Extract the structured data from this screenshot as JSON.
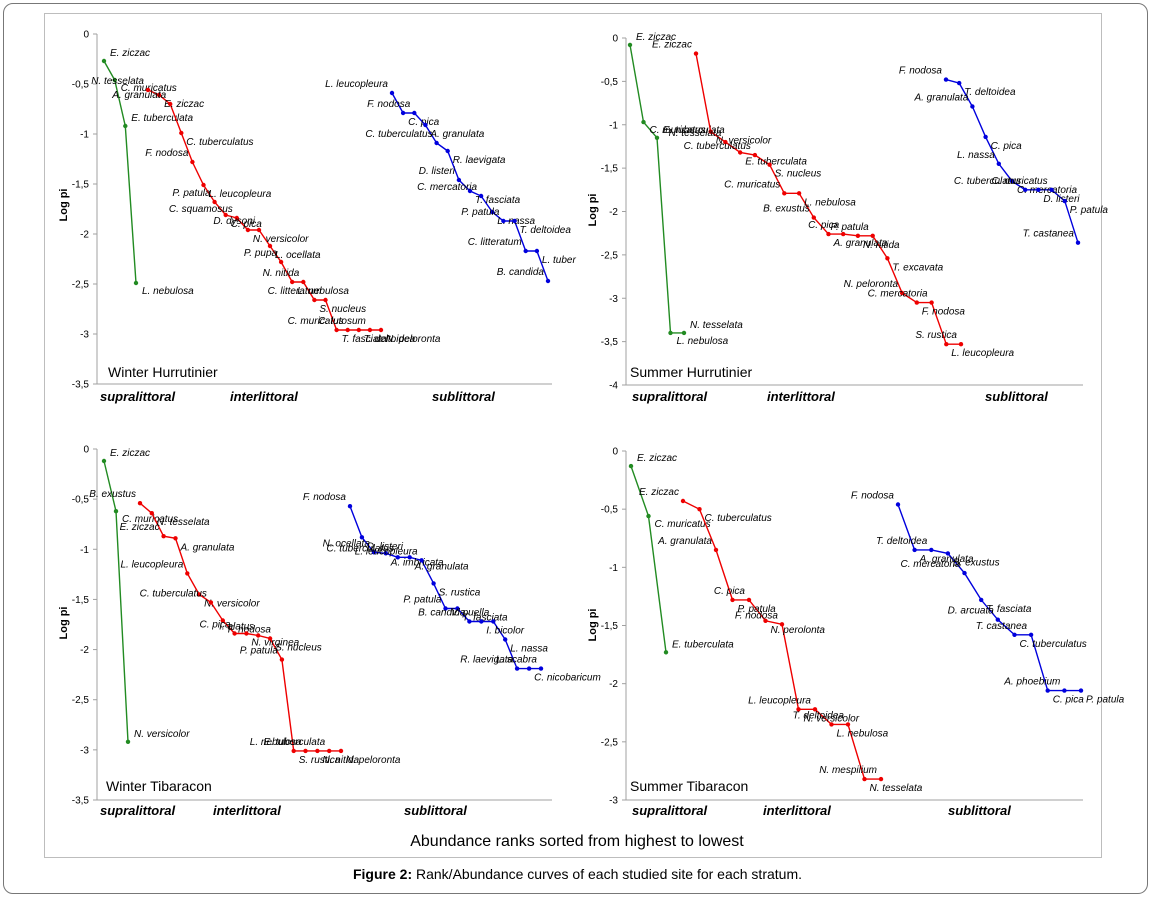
{
  "x_axis_label": "Abundance ranks sorted from highest to lowest",
  "y_axis_label": "Log pi",
  "zones": [
    "supralittoral",
    "interlittoral",
    "sublittoral"
  ],
  "caption": {
    "label": "Figure 2:",
    "text": " Rank/Abundance curves of each studied site for each stratum."
  },
  "colors": {
    "supralittoral": "#228b22",
    "interlittoral": "#ee0000",
    "sublittoral": "#0000dd"
  },
  "chart_data": [
    {
      "type": "line",
      "title": "Winter Hurrutinier",
      "ylabel": "Log pi",
      "ylim": [
        -3.5,
        0
      ],
      "yticks": [
        "0",
        "-0,5",
        "-1",
        "-1,5",
        "-2",
        "-2,5",
        "-3",
        "-3,5"
      ],
      "series": [
        {
          "name": "supralittoral",
          "points": [
            {
              "rank": 1,
              "y": -0.27,
              "label": "E. ziczac"
            },
            {
              "rank": 2,
              "y": -0.46,
              "label": "C. muricatus"
            },
            {
              "rank": 3,
              "y": -0.92,
              "label": "E. tuberculata"
            },
            {
              "rank": 4,
              "y": -2.49,
              "label": "L. nebulosa"
            }
          ]
        },
        {
          "name": "interlittoral",
          "points": [
            {
              "rank": 1,
              "y": -0.56,
              "label": "N. tesselata"
            },
            {
              "rank": 2,
              "y": -0.61,
              "label": "E. ziczac"
            },
            {
              "rank": 3,
              "y": -0.7,
              "label": "A. granulata"
            },
            {
              "rank": 4,
              "y": -0.99,
              "label": "C. tuberculatus"
            },
            {
              "rank": 5,
              "y": -1.28,
              "label": "F. nodosa"
            },
            {
              "rank": 6,
              "y": -1.51,
              "label": "L. leucopleura"
            },
            {
              "rank": 7,
              "y": -1.68,
              "label": "P. patula"
            },
            {
              "rank": 8,
              "y": -1.81,
              "label": "C. pica"
            },
            {
              "rank": 9,
              "y": -1.84,
              "label": "C. squamosus"
            },
            {
              "rank": 10,
              "y": -1.96,
              "label": "N. versicolor"
            },
            {
              "rank": 11,
              "y": -1.96,
              "label": "D. dysoni"
            },
            {
              "rank": 12,
              "y": -2.12,
              "label": "L. ocellata"
            },
            {
              "rank": 13,
              "y": -2.28,
              "label": "P. pupa"
            },
            {
              "rank": 14,
              "y": -2.48,
              "label": "L. nebulosa"
            },
            {
              "rank": 15,
              "y": -2.48,
              "label": "N. nitida"
            },
            {
              "rank": 16,
              "y": -2.66,
              "label": "S. nucleus"
            },
            {
              "rank": 17,
              "y": -2.66,
              "label": "C. litteratum"
            },
            {
              "rank": 18,
              "y": -2.96,
              "label": "T. fasciata"
            },
            {
              "rank": 19,
              "y": -2.96,
              "label": "C. muricatus"
            },
            {
              "rank": 20,
              "y": -2.96,
              "label": "T. deltoidea"
            },
            {
              "rank": 21,
              "y": -2.96,
              "label": "C. lutosum"
            },
            {
              "rank": 22,
              "y": -2.96,
              "label": "N. peloronta"
            }
          ]
        },
        {
          "name": "sublittoral",
          "points": [
            {
              "rank": 1,
              "y": -0.59,
              "label": "L. leucopleura"
            },
            {
              "rank": 2,
              "y": -0.79,
              "label": "C. pica"
            },
            {
              "rank": 3,
              "y": -0.79,
              "label": "F. nodosa"
            },
            {
              "rank": 4,
              "y": -0.91,
              "label": "A. granulata"
            },
            {
              "rank": 5,
              "y": -1.09,
              "label": "C. tuberculatus"
            },
            {
              "rank": 6,
              "y": -1.17,
              "label": "R. laevigata"
            },
            {
              "rank": 7,
              "y": -1.46,
              "label": "D. listeri"
            },
            {
              "rank": 8,
              "y": -1.57,
              "label": "T. fasciata"
            },
            {
              "rank": 9,
              "y": -1.62,
              "label": "C. mercatoria"
            },
            {
              "rank": 10,
              "y": -1.78,
              "label": "L. nassa"
            },
            {
              "rank": 11,
              "y": -1.87,
              "label": "P. patula"
            },
            {
              "rank": 12,
              "y": -1.87,
              "label": "T. deltoidea"
            },
            {
              "rank": 13,
              "y": -2.17,
              "label": "C. litteratum"
            },
            {
              "rank": 14,
              "y": -2.17,
              "label": "L. tuber"
            },
            {
              "rank": 15,
              "y": -2.47,
              "label": "B. candida"
            }
          ]
        }
      ]
    },
    {
      "type": "line",
      "title": "Summer Hurrutinier",
      "ylabel": "Log pi",
      "ylim": [
        -4,
        0
      ],
      "yticks": [
        "0",
        "-0,5",
        "-1",
        "-1,5",
        "-2",
        "-2,5",
        "-3",
        "-3,5",
        "-4"
      ],
      "series": [
        {
          "name": "supralittoral",
          "points": [
            {
              "rank": 1,
              "y": -0.08,
              "label": "E. ziczac"
            },
            {
              "rank": 2,
              "y": -0.97,
              "label": "C. muricatus"
            },
            {
              "rank": 3,
              "y": -1.15,
              "label": "E. tuberculata"
            },
            {
              "rank": 4,
              "y": -3.4,
              "label": "L. nebulosa"
            },
            {
              "rank": 5,
              "y": -3.4,
              "label": "N. tesselata"
            }
          ]
        },
        {
          "name": "interlittoral",
          "points": [
            {
              "rank": 1,
              "y": -0.18,
              "label": "E. ziczac"
            },
            {
              "rank": 2,
              "y": -1.08,
              "label": "N. versicolor"
            },
            {
              "rank": 3,
              "y": -1.2,
              "label": "N. tesselata"
            },
            {
              "rank": 4,
              "y": -1.32,
              "label": "E. tuberculata"
            },
            {
              "rank": 5,
              "y": -1.35,
              "label": "C. tuberculatus"
            },
            {
              "rank": 6,
              "y": -1.46,
              "label": "S. nucleus"
            },
            {
              "rank": 7,
              "y": -1.79,
              "label": "C. muricatus"
            },
            {
              "rank": 8,
              "y": -1.79,
              "label": "L. nebulosa"
            },
            {
              "rank": 9,
              "y": -2.07,
              "label": "B. exustus"
            },
            {
              "rank": 10,
              "y": -2.26,
              "label": "A. granulata"
            },
            {
              "rank": 11,
              "y": -2.26,
              "label": "C. pica"
            },
            {
              "rank": 12,
              "y": -2.28,
              "label": "N. nitida"
            },
            {
              "rank": 13,
              "y": -2.28,
              "label": "P. patula"
            },
            {
              "rank": 14,
              "y": -2.54,
              "label": "T. excavata"
            },
            {
              "rank": 15,
              "y": -2.94,
              "label": "N. peloronta"
            },
            {
              "rank": 16,
              "y": -3.05,
              "label": "F. nodosa"
            },
            {
              "rank": 17,
              "y": -3.05,
              "label": "C. mercatoria"
            },
            {
              "rank": 18,
              "y": -3.53,
              "label": "L. leucopleura"
            },
            {
              "rank": 19,
              "y": -3.53,
              "label": "S. rustica"
            }
          ]
        },
        {
          "name": "sublittoral",
          "points": [
            {
              "rank": 1,
              "y": -0.48,
              "label": "F. nodosa"
            },
            {
              "rank": 2,
              "y": -0.52,
              "label": "T. deltoidea"
            },
            {
              "rank": 3,
              "y": -0.79,
              "label": "A. granulata"
            },
            {
              "rank": 4,
              "y": -1.14,
              "label": "C. pica"
            },
            {
              "rank": 5,
              "y": -1.45,
              "label": "L. nassa"
            },
            {
              "rank": 6,
              "y": -1.65,
              "label": "C. mercatoria"
            },
            {
              "rank": 7,
              "y": -1.75,
              "label": "C. tuberculatus"
            },
            {
              "rank": 8,
              "y": -1.75,
              "label": "D. listeri"
            },
            {
              "rank": 9,
              "y": -1.75,
              "label": "C. muricatus"
            },
            {
              "rank": 10,
              "y": -1.88,
              "label": "P. patula"
            },
            {
              "rank": 11,
              "y": -2.36,
              "label": "T. castanea"
            }
          ]
        }
      ]
    },
    {
      "type": "line",
      "title": "Winter Tibaracon",
      "ylabel": "Log pi",
      "ylim": [
        -3.5,
        0
      ],
      "yticks": [
        "0",
        "-0,5",
        "-1",
        "-1,5",
        "-2",
        "-2,5",
        "-3",
        "-3,5"
      ],
      "series": [
        {
          "name": "supralittoral",
          "points": [
            {
              "rank": 1,
              "y": -0.12,
              "label": "E. ziczac"
            },
            {
              "rank": 2,
              "y": -0.62,
              "label": "C. muricatus"
            },
            {
              "rank": 3,
              "y": -2.92,
              "label": "N. versicolor"
            }
          ]
        },
        {
          "name": "interlittoral",
          "points": [
            {
              "rank": 1,
              "y": -0.54,
              "label": "B. exustus"
            },
            {
              "rank": 2,
              "y": -0.64,
              "label": "N. tesselata"
            },
            {
              "rank": 3,
              "y": -0.87,
              "label": "E. ziczac"
            },
            {
              "rank": 4,
              "y": -0.89,
              "label": "A. granulata"
            },
            {
              "rank": 5,
              "y": -1.24,
              "label": "L. leucopleura"
            },
            {
              "rank": 6,
              "y": -1.45,
              "label": "N. versicolor"
            },
            {
              "rank": 7,
              "y": -1.53,
              "label": "C. tuberculatus"
            },
            {
              "rank": 8,
              "y": -1.71,
              "label": "F. nodosa"
            },
            {
              "rank": 9,
              "y": -1.84,
              "label": "C. pica"
            },
            {
              "rank": 10,
              "y": -1.84,
              "label": "N. virginea"
            },
            {
              "rank": 11,
              "y": -1.86,
              "label": "I. alatus"
            },
            {
              "rank": 12,
              "y": -1.89,
              "label": "S. nucleus"
            },
            {
              "rank": 13,
              "y": -2.1,
              "label": "P. patula"
            },
            {
              "rank": 14,
              "y": -3.01,
              "label": "S. rustica"
            },
            {
              "rank": 15,
              "y": -3.01,
              "label": "L. nebulosa"
            },
            {
              "rank": 16,
              "y": -3.01,
              "label": "N. nitida"
            },
            {
              "rank": 17,
              "y": -3.01,
              "label": "E. tuberculata"
            },
            {
              "rank": 18,
              "y": -3.01,
              "label": "N. peloronta"
            }
          ]
        },
        {
          "name": "sublittoral",
          "points": [
            {
              "rank": 1,
              "y": -0.57,
              "label": "F. nodosa"
            },
            {
              "rank": 2,
              "y": -0.88,
              "label": "D. listeri"
            },
            {
              "rank": 3,
              "y": -1.03,
              "label": "N. ocellata"
            },
            {
              "rank": 4,
              "y": -1.04,
              "label": "A. imbricata"
            },
            {
              "rank": 5,
              "y": -1.08,
              "label": "C. tuberculatus"
            },
            {
              "rank": 6,
              "y": -1.08,
              "label": "A. granulata"
            },
            {
              "rank": 7,
              "y": -1.11,
              "label": "L. leucopleura"
            },
            {
              "rank": 8,
              "y": -1.34,
              "label": "S. rustica"
            },
            {
              "rank": 9,
              "y": -1.59,
              "label": "P. patula"
            },
            {
              "rank": 10,
              "y": -1.59,
              "label": "T. fasciata"
            },
            {
              "rank": 11,
              "y": -1.72,
              "label": "B. candida"
            },
            {
              "rank": 12,
              "y": -1.72,
              "label": "I. bicolor"
            },
            {
              "rank": 13,
              "y": -1.72,
              "label": "V. puella"
            },
            {
              "rank": 14,
              "y": -1.9,
              "label": "L. nassa"
            },
            {
              "rank": 15,
              "y": -2.19,
              "label": "R. laevigata"
            },
            {
              "rank": 16,
              "y": -2.19,
              "label": "C. nicobaricum"
            },
            {
              "rank": 17,
              "y": -2.19,
              "label": "L. scabra"
            }
          ]
        }
      ]
    },
    {
      "type": "line",
      "title": "Summer Tibaracon",
      "ylabel": "Log pi",
      "ylim": [
        -3,
        0
      ],
      "yticks": [
        "0",
        "-0,5",
        "-1",
        "-1,5",
        "-2",
        "-2,5",
        "-3"
      ],
      "series": [
        {
          "name": "supralittoral",
          "points": [
            {
              "rank": 1,
              "y": -0.13,
              "label": "E. ziczac"
            },
            {
              "rank": 2,
              "y": -0.56,
              "label": "C. muricatus"
            },
            {
              "rank": 3,
              "y": -1.73,
              "label": "E. tuberculata"
            }
          ]
        },
        {
          "name": "interlittoral",
          "points": [
            {
              "rank": 1,
              "y": -0.43,
              "label": "E. ziczac"
            },
            {
              "rank": 2,
              "y": -0.5,
              "label": "C. tuberculatus"
            },
            {
              "rank": 3,
              "y": -0.85,
              "label": "A. granulata"
            },
            {
              "rank": 4,
              "y": -1.28,
              "label": "P. patula"
            },
            {
              "rank": 5,
              "y": -1.28,
              "label": "C. pica"
            },
            {
              "rank": 6,
              "y": -1.46,
              "label": "N. perolonta"
            },
            {
              "rank": 7,
              "y": -1.49,
              "label": "F. nodosa"
            },
            {
              "rank": 8,
              "y": -2.22,
              "label": "N. versicolor"
            },
            {
              "rank": 9,
              "y": -2.22,
              "label": "L. leucopleura"
            },
            {
              "rank": 10,
              "y": -2.35,
              "label": "L. nebulosa"
            },
            {
              "rank": 11,
              "y": -2.35,
              "label": "T. deltoidea"
            },
            {
              "rank": 12,
              "y": -2.82,
              "label": "N. tesselata"
            },
            {
              "rank": 13,
              "y": -2.82,
              "label": "N. mespilium"
            }
          ]
        },
        {
          "name": "sublittoral",
          "points": [
            {
              "rank": 1,
              "y": -0.46,
              "label": "F. nodosa"
            },
            {
              "rank": 2,
              "y": -0.85,
              "label": "A. granulata"
            },
            {
              "rank": 3,
              "y": -0.85,
              "label": "T. deltoidea"
            },
            {
              "rank": 4,
              "y": -0.88,
              "label": "B. exustus"
            },
            {
              "rank": 5,
              "y": -1.05,
              "label": "C. mercatoria"
            },
            {
              "rank": 6,
              "y": -1.28,
              "label": "T. fasciata"
            },
            {
              "rank": 7,
              "y": -1.45,
              "label": "D. arcuata"
            },
            {
              "rank": 8,
              "y": -1.58,
              "label": "C. tuberculatus"
            },
            {
              "rank": 9,
              "y": -1.58,
              "label": "T. castanea"
            },
            {
              "rank": 10,
              "y": -2.06,
              "label": "C. pica"
            },
            {
              "rank": 11,
              "y": -2.06,
              "label": "A. phoebium"
            },
            {
              "rank": 12,
              "y": -2.06,
              "label": "P. patula"
            }
          ]
        }
      ]
    }
  ]
}
